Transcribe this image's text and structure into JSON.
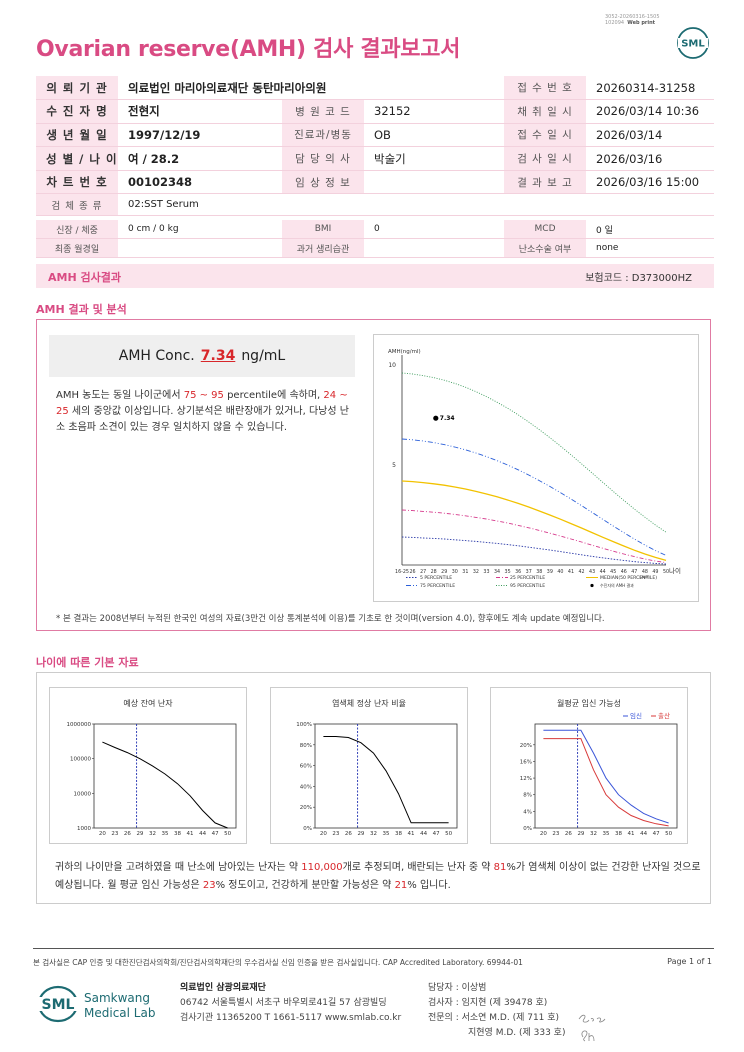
{
  "header": {
    "title": "Ovarian reserve(AMH) 검사 결과보고서",
    "code_line1": "3052-20260316-1505",
    "code_line2": "102094",
    "code_tag": "Web print",
    "logo_text": "SML"
  },
  "patient": {
    "rows": [
      {
        "l1": "의 뢰 기 관",
        "v1": "의료법인 마리아의료재단 동탄마리아의원",
        "l3": "접 수 번 호",
        "v3": "20260314-31258"
      },
      {
        "l1": "수 진 자 명",
        "v1": "전현지",
        "l2": "병 원 코 드",
        "v2": "32152",
        "l3": "채 취 일 시",
        "v3": "2026/03/14 10:36"
      },
      {
        "l1": "생 년 월 일",
        "v1": "1997/12/19",
        "l2": "진료과/병동",
        "v2": "OB",
        "l3": "접 수 일 시",
        "v3": "2026/03/14"
      },
      {
        "l1": "성 별 / 나 이",
        "v1": "여 / 28.2",
        "l2": "담 당 의 사",
        "v2": "박술기",
        "l3": "검 사 일 시",
        "v3": "2026/03/16"
      },
      {
        "l1": "차 트 번 호",
        "v1": "00102348",
        "l2": "임 상 정 보",
        "v2": "",
        "l3": "결 과 보 고",
        "v3": "2026/03/16 15:00"
      }
    ],
    "specimen_label": "검 체 종 류",
    "specimen": "02:SST Serum",
    "height_label": "신장 / 체중",
    "height": "0 cm / 0 kg",
    "bmi_label": "BMI",
    "bmi": "0",
    "mcd_label": "MCD",
    "mcd": "0 일",
    "lmp_label": "최종 월경일",
    "lmp": "",
    "history_label": "과거 생리습관",
    "history": "",
    "surgery_label": "난소수술 여부",
    "surgery": "none"
  },
  "result_bar": {
    "title": "AMH 검사결과",
    "insurance": "보험코드 : D373000HZ"
  },
  "analysis": {
    "section_title": "AMH 결과 및 분석",
    "conc_label": "AMH Conc.",
    "conc_value": "7.34",
    "conc_unit": "ng/mL",
    "p1": "AMH 농도는 동일 나이군에서 ",
    "p_range": "75 ~ 95",
    "p2": " percentile에 속하며, ",
    "age_range": "24 ~ 25",
    "p3": " 세의 중앙값 이상입니다. 상기분석은 배란장애가 있거나, 다낭성 난소 초음파 소견이 있는 경우 일치하지 않을 수 있습니다.",
    "note": "* 본 결과는 2008년부터 누적된 한국인 여성의 자료(3만건 이상 통계분석에 이용)를 기초로 한 것이며(version 4.0), 향후에도 계속 update 예정입니다."
  },
  "chart_data": [
    {
      "type": "line",
      "ylabel": "AMH(ng/ml)",
      "xlabel": "나이",
      "x": [
        "16-25",
        "26",
        "27",
        "28",
        "29",
        "30",
        "31",
        "32",
        "33",
        "34",
        "35",
        "36",
        "37",
        "38",
        "39",
        "40",
        "41",
        "42",
        "43",
        "44",
        "45",
        "46",
        "47",
        "48",
        "49",
        "50"
      ],
      "x_ages": [
        25,
        26,
        27,
        28,
        29,
        30,
        31,
        32,
        33,
        34,
        35,
        36,
        37,
        38,
        39,
        40,
        41,
        42,
        43,
        44,
        45,
        46,
        47,
        48,
        49,
        50
      ],
      "yticks": [
        5,
        10
      ],
      "ylim": [
        0,
        10.5
      ],
      "series": [
        {
          "name": "5 PERCENTILE",
          "color": "#2b3aa8",
          "values": [
            1.4,
            1.38,
            1.35,
            1.33,
            1.3,
            1.26,
            1.22,
            1.18,
            1.13,
            1.08,
            1.02,
            0.96,
            0.89,
            0.82,
            0.75,
            0.67,
            0.59,
            0.51,
            0.43,
            0.36,
            0.29,
            0.23,
            0.17,
            0.12,
            0.08,
            0.05
          ]
        },
        {
          "name": "25 PERCENTILE",
          "color": "#d63a8c",
          "values": [
            2.75,
            2.72,
            2.68,
            2.64,
            2.59,
            2.53,
            2.46,
            2.38,
            2.3,
            2.2,
            2.1,
            1.98,
            1.86,
            1.73,
            1.59,
            1.45,
            1.3,
            1.15,
            0.99,
            0.84,
            0.69,
            0.55,
            0.42,
            0.3,
            0.2,
            0.12
          ]
        },
        {
          "name": "MEDIAN(50 PERCENTILE)",
          "color": "#f2c200",
          "values": [
            4.2,
            4.17,
            4.12,
            4.06,
            3.99,
            3.9,
            3.8,
            3.68,
            3.55,
            3.41,
            3.25,
            3.08,
            2.9,
            2.7,
            2.5,
            2.29,
            2.07,
            1.85,
            1.62,
            1.39,
            1.17,
            0.95,
            0.74,
            0.55,
            0.38,
            0.23
          ]
        },
        {
          "name": "75 PERCENTILE",
          "color": "#2b5fd8",
          "values": [
            6.3,
            6.26,
            6.2,
            6.12,
            6.02,
            5.9,
            5.76,
            5.6,
            5.42,
            5.22,
            5.0,
            4.76,
            4.5,
            4.22,
            3.93,
            3.62,
            3.3,
            2.97,
            2.63,
            2.29,
            1.95,
            1.62,
            1.3,
            1.0,
            0.72,
            0.48
          ]
        },
        {
          "name": "95 PERCENTILE",
          "color": "#3a9a5a",
          "values": [
            9.6,
            9.55,
            9.47,
            9.37,
            9.24,
            9.08,
            8.89,
            8.67,
            8.42,
            8.14,
            7.84,
            7.51,
            7.15,
            6.77,
            6.37,
            5.95,
            5.51,
            5.06,
            4.6,
            4.14,
            3.68,
            3.23,
            2.8,
            2.39,
            2.0,
            1.64
          ]
        }
      ],
      "marker": {
        "x_age": 28.2,
        "y": 7.34,
        "label": "7.34"
      },
      "marker_legend": "수진자의 AMH 결과",
      "xunit_label": "(Age)"
    },
    {
      "type": "line",
      "title": "예상 잔여 난자",
      "x": [
        20,
        23,
        26,
        29,
        32,
        35,
        38,
        41,
        44,
        47,
        50
      ],
      "log_y": true,
      "ylim": [
        1000,
        1000000
      ],
      "yticks": [
        "1000000",
        "100000",
        "10000",
        "1000"
      ],
      "values": [
        300000,
        210000,
        150000,
        100000,
        62000,
        36000,
        19000,
        8500,
        3200,
        1400,
        1000
      ],
      "vline_age": 28.2,
      "color": "#000000"
    },
    {
      "type": "line",
      "title": "염색체 정상 난자 비율",
      "x": [
        20,
        23,
        26,
        29,
        32,
        35,
        38,
        41,
        44,
        47,
        50
      ],
      "ylim": [
        0,
        100
      ],
      "yticks": [
        "100%",
        "80%",
        "60%",
        "40%",
        "20%",
        "0%"
      ],
      "values": [
        88,
        88,
        87,
        82,
        72,
        55,
        33,
        5,
        5,
        5,
        5
      ],
      "vline_age": 28.2,
      "color": "#000000"
    },
    {
      "type": "line",
      "title": "월평균 임신 가능성",
      "x": [
        20,
        23,
        26,
        29,
        32,
        35,
        38,
        41,
        44,
        47,
        50
      ],
      "ylim": [
        0,
        25
      ],
      "yticks": [
        "20%",
        "16%",
        "12%",
        "8%",
        "4%",
        "0%"
      ],
      "series": [
        {
          "name": "임신",
          "color": "#3a55d8",
          "values": [
            23.5,
            23.5,
            23.5,
            23.5,
            18,
            12,
            8,
            5.5,
            3.5,
            2.2,
            1.2
          ]
        },
        {
          "name": "출산",
          "color": "#d83a3a",
          "values": [
            21.5,
            21.5,
            21.5,
            21.5,
            14,
            8,
            5,
            3,
            1.8,
            1,
            0.5
          ]
        }
      ],
      "vline_age": 28.2
    }
  ],
  "age_info": {
    "section_title": "나이에 따른 기본 자료",
    "t1": "귀하의 나이만을 고려하였을 때 난소에 남아있는 난자는 약 ",
    "eggs": "110,000",
    "t2": "개로 추정되며, 배란되는 난자 중 약 ",
    "normal": "81",
    "t3": "%가 염색체 이상이 없는 건강한 난자일 것으로 예상됩니다. 월 평균 임신 가능성은 ",
    "preg": "23",
    "t4": "% 정도이고, 건강하게 분만할 가능성은 약 ",
    "birth": "21",
    "t5": "% 입니다."
  },
  "footer": {
    "cert": "본 검사실은 CAP 인증 및 대한진단검사의학회/진단검사의학재단의 우수검사실 신임 인증을 받은 검사실입니다.  CAP Accredited Laboratory. 69944-01",
    "page": "Page 1 of 1",
    "logo_sml": "SML",
    "logo_name1": "Samkwang",
    "logo_name2": "Medical Lab",
    "org_name": "의료법인 삼광의료재단",
    "org_addr": "06742 서울특별시 서초구 바우뫼로41길 57 삼광빌딩",
    "org_contact": "검사기관 11365200  T 1661-5117  www.smlab.co.kr",
    "staff1": "담당자 :  이상범",
    "staff2": "검사자 :  임지현 (제 39478 호)",
    "staff3": "전문의 :  서소연 M.D. (제 711 호)",
    "staff4": "지현영 M.D. (제 333 호)",
    "signature_text": "Seo / Ch"
  }
}
